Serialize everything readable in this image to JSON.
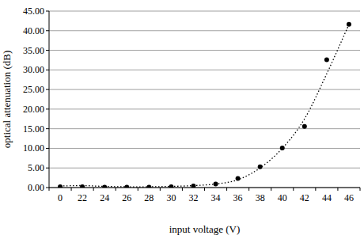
{
  "chart_data": {
    "type": "scatter",
    "x_label": "input voltage (V)",
    "y_label": "optical attenuation (dB)",
    "categories": [
      "0",
      "22",
      "24",
      "26",
      "28",
      "30",
      "32",
      "34",
      "36",
      "38",
      "40",
      "42",
      "44",
      "46"
    ],
    "series": [
      {
        "type": "scatter",
        "marker": "circle",
        "color": "#000000",
        "values": [
          0.2,
          0.2,
          0.1,
          0.1,
          0.1,
          0.2,
          0.4,
          0.9,
          2.3,
          5.3,
          10.1,
          15.6,
          32.6,
          41.6
        ]
      },
      {
        "type": "line",
        "line_style": "dotted",
        "color": "#000000",
        "values": [
          0.4,
          0.5,
          0.3,
          0.2,
          0.2,
          0.3,
          0.5,
          0.9,
          2.0,
          5.0,
          10.0,
          17.5,
          29.0,
          41.6
        ]
      }
    ],
    "ylim": [
      0,
      45
    ],
    "yticks": [
      {
        "value": 0,
        "label": "0.00"
      },
      {
        "value": 5,
        "label": "5.00"
      },
      {
        "value": 10,
        "label": "10.00"
      },
      {
        "value": 15,
        "label": "15.00"
      },
      {
        "value": 20,
        "label": "20.00"
      },
      {
        "value": 25,
        "label": "25.00"
      },
      {
        "value": 30,
        "label": "30.00"
      },
      {
        "value": 35,
        "label": "35.00"
      },
      {
        "value": 40,
        "label": "40.00"
      },
      {
        "value": 45,
        "label": "45.00"
      }
    ],
    "grid": true
  }
}
